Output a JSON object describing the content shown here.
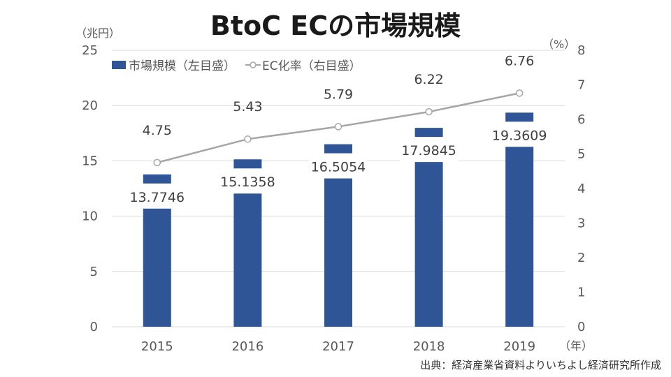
{
  "header": {
    "title": "BtoC ECの市場規模"
  },
  "units": {
    "left": "（兆円）",
    "right": "（%）",
    "x": "（年）"
  },
  "legend": {
    "bar": "市場規模（左目盛）",
    "line": "EC化率（右目盛）"
  },
  "source": "出典：経済産業省資料よりいちよし経済研究所作成",
  "colors": {
    "bar": "#2f5597",
    "line": "#a6a6a6",
    "grid": "#d9d9d9"
  },
  "chart_data": {
    "type": "bar",
    "categories": [
      "2015",
      "2016",
      "2017",
      "2018",
      "2019"
    ],
    "series": [
      {
        "name": "市場規模（左目盛）",
        "axis": "left",
        "type": "bar",
        "values": [
          13.7746,
          15.1358,
          16.5054,
          17.9845,
          19.3609
        ],
        "labels": [
          "13.7746",
          "15.1358",
          "16.5054",
          "17.9845",
          "19.3609"
        ]
      },
      {
        "name": "EC化率（右目盛）",
        "axis": "right",
        "type": "line",
        "values": [
          4.75,
          5.43,
          5.79,
          6.22,
          6.76
        ],
        "labels": [
          "4.75",
          "5.43",
          "5.79",
          "6.22",
          "6.76"
        ]
      }
    ],
    "y_left": {
      "min": 0,
      "max": 25,
      "ticks": [
        "0",
        "5",
        "10",
        "15",
        "20",
        "25"
      ]
    },
    "y_right": {
      "min": 0,
      "max": 8,
      "ticks": [
        "0",
        "1",
        "2",
        "3",
        "4",
        "5",
        "6",
        "7",
        "8"
      ]
    },
    "grid": true,
    "legend_position": "top-left"
  }
}
